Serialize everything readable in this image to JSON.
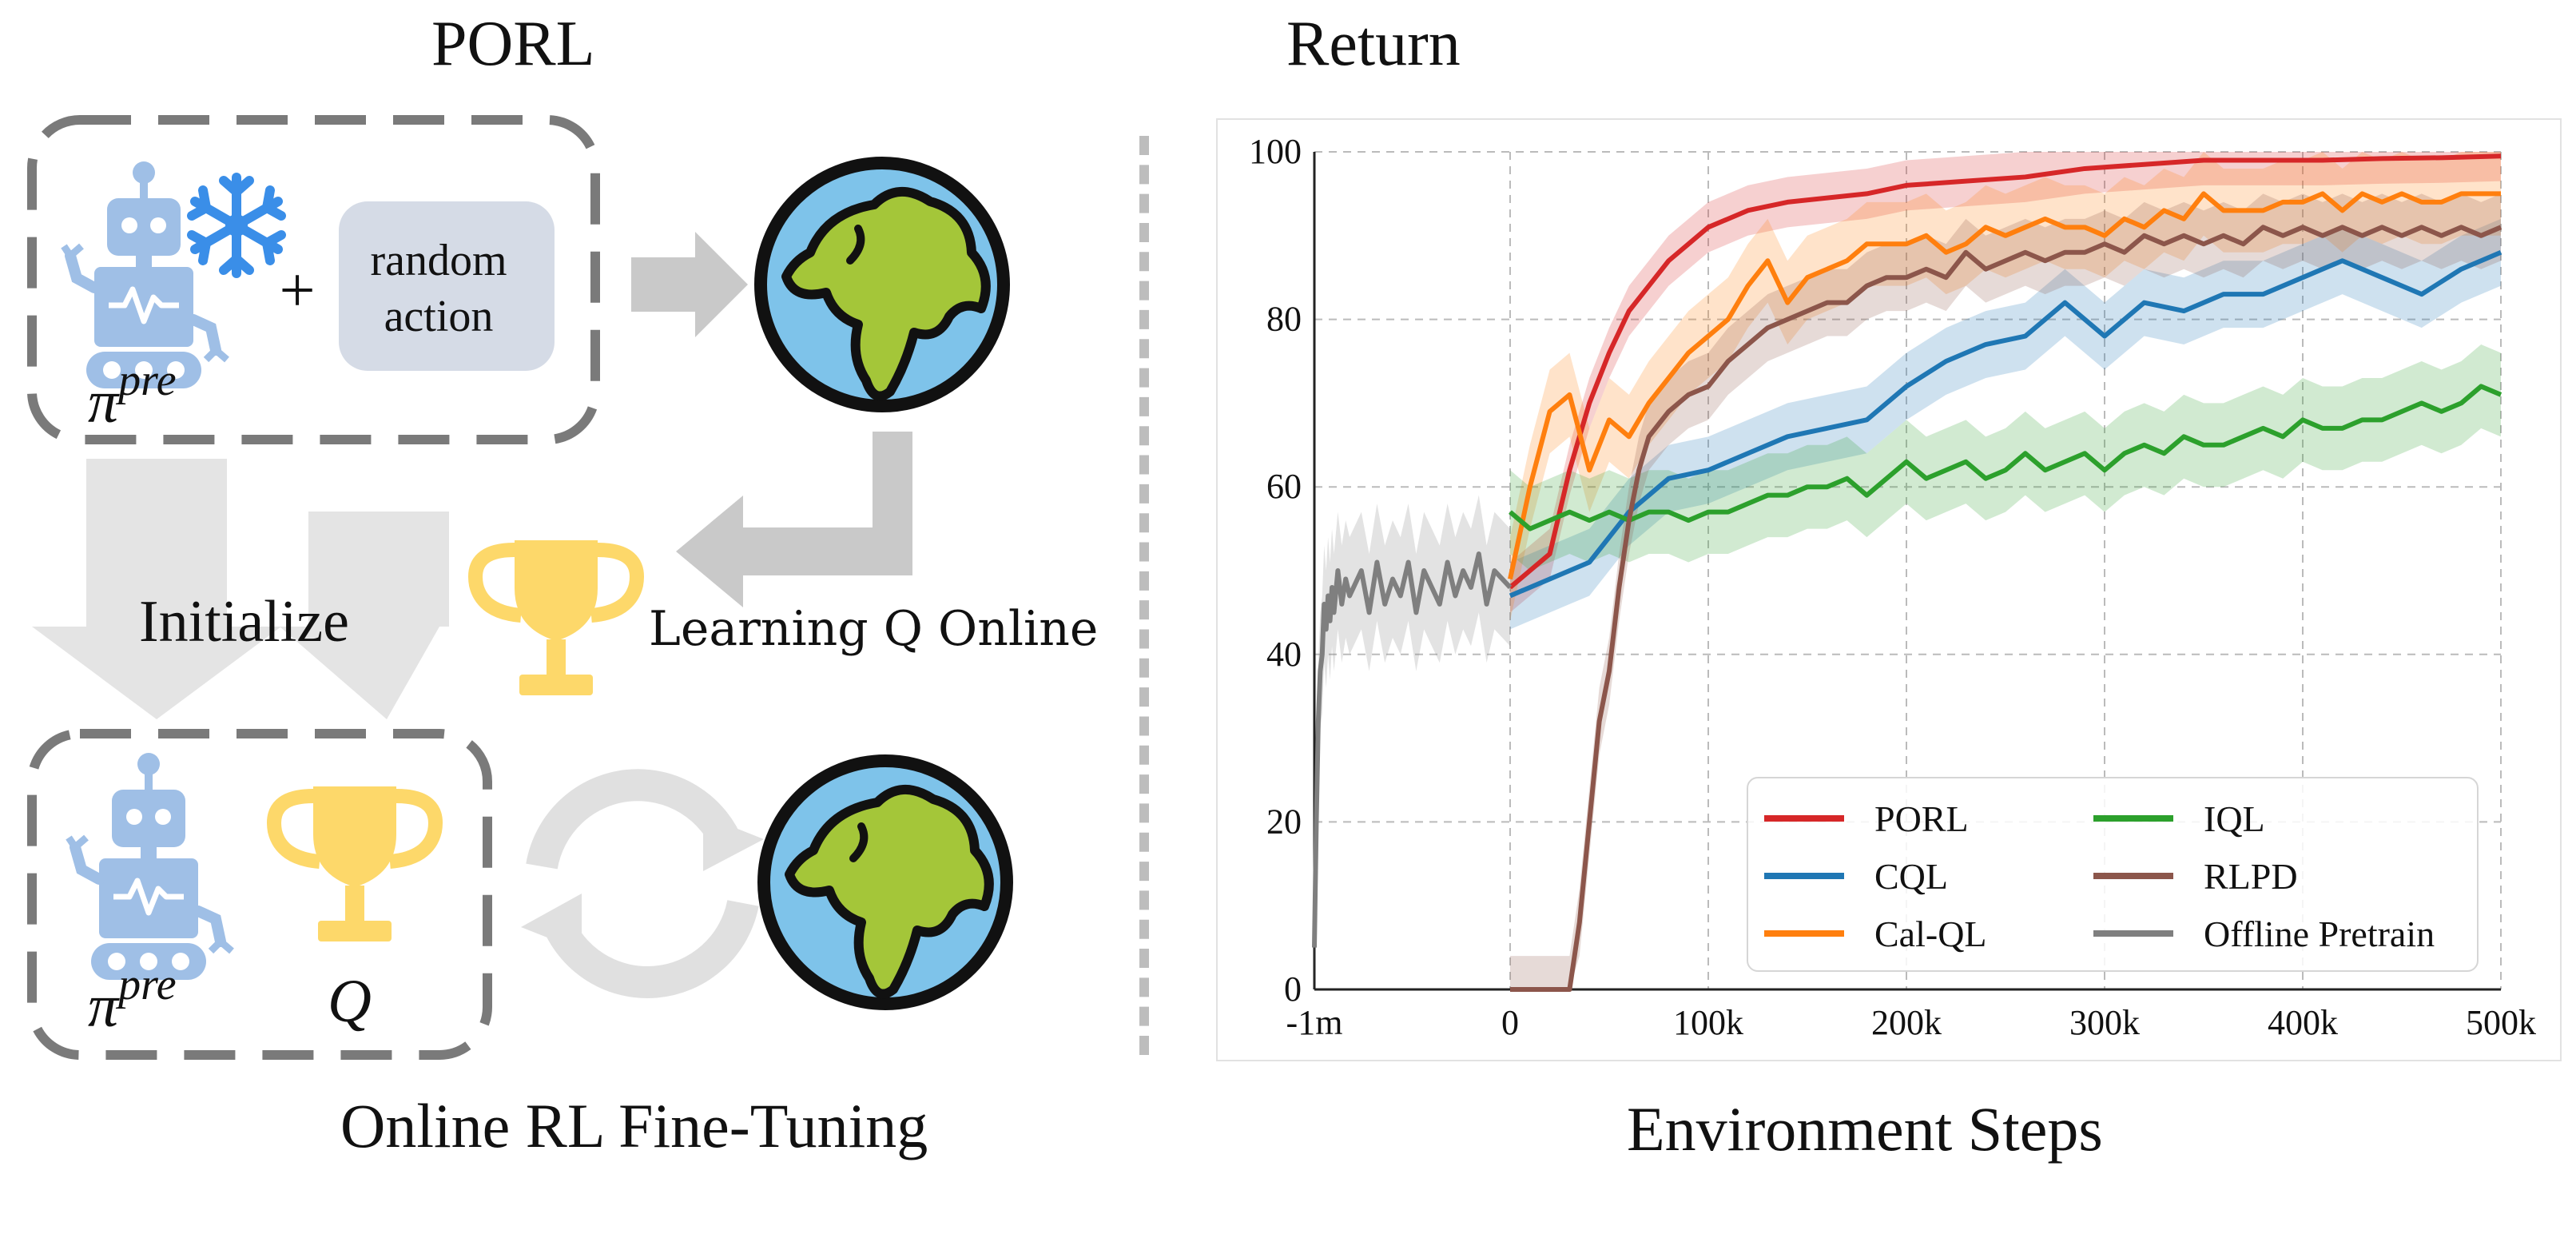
{
  "figure": {
    "left_title": "PORL",
    "right_title": "Return",
    "bottom_left_caption": "Online RL Fine-Tuning",
    "bottom_right_caption": "Environment Steps"
  },
  "diagram": {
    "policy_symbol": "π",
    "policy_superscript": "pre",
    "plus": "+",
    "random_action_line1": "random",
    "random_action_line2": "action",
    "initialize_label": "Initialize",
    "learning_q_label": "Learning Q Online",
    "q_symbol": "Q",
    "icons": {
      "robot": "robot-icon",
      "frozen": "snowflake-icon",
      "environment": "globe-icon",
      "critic": "trophy-icon",
      "loop": "cycle-arrows-icon"
    },
    "colors": {
      "robot": "#9fbfe6",
      "snowflake": "#3a8ee8",
      "ocean": "#7ec3ea",
      "land": "#a4c639",
      "trophy": "#fdd86a",
      "arrow": "#c9c9c9",
      "dash": "#7a7a7a",
      "random_box": "#d5dbe6"
    }
  },
  "chart_data": {
    "type": "line",
    "title": "Return",
    "xlabel": "Environment Steps",
    "ylabel": "Return",
    "ylim": [
      0,
      100
    ],
    "yticks": [
      0,
      20,
      40,
      60,
      80,
      100
    ],
    "xlim": [
      -1000000,
      500000
    ],
    "x_tick_values": [
      -1000000,
      0,
      100000,
      200000,
      300000,
      400000,
      500000
    ],
    "x_tick_labels": [
      "-1m",
      "0",
      "100k",
      "200k",
      "300k",
      "400k",
      "500k"
    ],
    "x_axis_note": "Offline segment from -1m to 0 is compressed into one 100k-wide interval",
    "grid": true,
    "legend_position": "bottom-right",
    "series": [
      {
        "name": "PORL",
        "color": "#d62728",
        "x": [
          0,
          10000,
          20000,
          30000,
          40000,
          50000,
          60000,
          70000,
          80000,
          90000,
          100000,
          120000,
          140000,
          160000,
          180000,
          200000,
          230000,
          260000,
          290000,
          320000,
          350000,
          380000,
          410000,
          440000,
          470000,
          500000
        ],
        "y": [
          48,
          50,
          52,
          62,
          70,
          76,
          81,
          84,
          87,
          89,
          91,
          93,
          94,
          94.5,
          95,
          96,
          96.5,
          97,
          98,
          98.5,
          99,
          99,
          99,
          99.2,
          99.3,
          99.5
        ],
        "band": 3
      },
      {
        "name": "CQL",
        "color": "#1f77b4",
        "x": [
          0,
          10000,
          20000,
          30000,
          40000,
          50000,
          60000,
          70000,
          80000,
          90000,
          100000,
          120000,
          140000,
          160000,
          180000,
          200000,
          220000,
          240000,
          260000,
          280000,
          300000,
          320000,
          340000,
          360000,
          380000,
          400000,
          420000,
          440000,
          460000,
          480000,
          500000
        ],
        "y": [
          47,
          48,
          49,
          50,
          51,
          54,
          57,
          59,
          61,
          61.5,
          62,
          64,
          66,
          67,
          68,
          72,
          75,
          77,
          78,
          82,
          78,
          82,
          81,
          83,
          83,
          85,
          87,
          85,
          83,
          86,
          88
        ],
        "band": 4
      },
      {
        "name": "Cal-QL",
        "color": "#ff7f0e",
        "x": [
          0,
          10000,
          20000,
          30000,
          40000,
          50000,
          60000,
          70000,
          80000,
          90000,
          100000,
          110000,
          120000,
          130000,
          140000,
          150000,
          160000,
          170000,
          180000,
          190000,
          200000,
          210000,
          220000,
          230000,
          240000,
          250000,
          260000,
          270000,
          280000,
          290000,
          300000,
          310000,
          320000,
          330000,
          340000,
          350000,
          360000,
          370000,
          380000,
          390000,
          400000,
          410000,
          420000,
          430000,
          440000,
          450000,
          460000,
          470000,
          480000,
          490000,
          500000
        ],
        "y": [
          49,
          60,
          69,
          71,
          62,
          68,
          66,
          70,
          73,
          76,
          78,
          80,
          84,
          87,
          82,
          85,
          86,
          87,
          89,
          89,
          89,
          90,
          88,
          89,
          91,
          90,
          91,
          92,
          91,
          91,
          90,
          92,
          91,
          93,
          92,
          95,
          93,
          93,
          93,
          94,
          94,
          95,
          93,
          95,
          94,
          95,
          94,
          94,
          95,
          95,
          95
        ],
        "band": 5
      },
      {
        "name": "IQL",
        "color": "#2ca02c",
        "x": [
          0,
          10000,
          20000,
          30000,
          40000,
          50000,
          60000,
          70000,
          80000,
          90000,
          100000,
          110000,
          120000,
          130000,
          140000,
          150000,
          160000,
          170000,
          180000,
          190000,
          200000,
          210000,
          220000,
          230000,
          240000,
          250000,
          260000,
          270000,
          280000,
          290000,
          300000,
          310000,
          320000,
          330000,
          340000,
          350000,
          360000,
          370000,
          380000,
          390000,
          400000,
          410000,
          420000,
          430000,
          440000,
          450000,
          460000,
          470000,
          480000,
          490000,
          500000
        ],
        "y": [
          57,
          55,
          56,
          57,
          56,
          57,
          56,
          57,
          57,
          56,
          57,
          57,
          58,
          59,
          59,
          60,
          60,
          61,
          59,
          61,
          63,
          61,
          62,
          63,
          61,
          62,
          64,
          62,
          63,
          64,
          62,
          64,
          65,
          64,
          66,
          65,
          65,
          66,
          67,
          66,
          68,
          67,
          67,
          68,
          68,
          69,
          70,
          69,
          70,
          72,
          71
        ],
        "band": 5
      },
      {
        "name": "RLPD",
        "color": "#8c564b",
        "x": [
          0,
          20000,
          30000,
          35000,
          40000,
          45000,
          50000,
          55000,
          60000,
          65000,
          70000,
          80000,
          90000,
          100000,
          110000,
          120000,
          130000,
          140000,
          150000,
          160000,
          170000,
          180000,
          190000,
          200000,
          210000,
          220000,
          230000,
          240000,
          250000,
          260000,
          270000,
          280000,
          290000,
          300000,
          310000,
          320000,
          330000,
          340000,
          350000,
          360000,
          370000,
          380000,
          390000,
          400000,
          410000,
          420000,
          430000,
          440000,
          450000,
          460000,
          470000,
          480000,
          490000,
          500000
        ],
        "y": [
          0,
          0,
          0,
          8,
          20,
          32,
          38,
          48,
          56,
          62,
          66,
          69,
          71,
          72,
          75,
          77,
          79,
          80,
          81,
          82,
          82,
          84,
          85,
          85,
          86,
          85,
          88,
          86,
          87,
          88,
          87,
          88,
          88,
          89,
          88,
          90,
          89,
          90,
          89,
          90,
          89,
          91,
          90,
          91,
          90,
          91,
          90,
          91,
          90,
          91,
          90,
          91,
          90,
          91
        ],
        "band": 4
      },
      {
        "name": "Offline Pretrain",
        "color": "#7f7f7f",
        "x": [
          -1000000,
          -990000,
          -980000,
          -970000,
          -960000,
          -950000,
          -940000,
          -930000,
          -920000,
          -910000,
          -900000,
          -880000,
          -860000,
          -840000,
          -820000,
          -800000,
          -760000,
          -720000,
          -680000,
          -640000,
          -600000,
          -560000,
          -520000,
          -480000,
          -440000,
          -400000,
          -360000,
          -320000,
          -280000,
          -240000,
          -200000,
          -160000,
          -120000,
          -80000,
          -40000,
          0
        ],
        "y": [
          5,
          20,
          32,
          38,
          40,
          46,
          43,
          47,
          44,
          48,
          45,
          50,
          46,
          49,
          47,
          48,
          50,
          45,
          51,
          46,
          49,
          47,
          51,
          45,
          50,
          48,
          46,
          51,
          47,
          50,
          48,
          52,
          46,
          50,
          49,
          48
        ],
        "band": 7
      }
    ]
  }
}
